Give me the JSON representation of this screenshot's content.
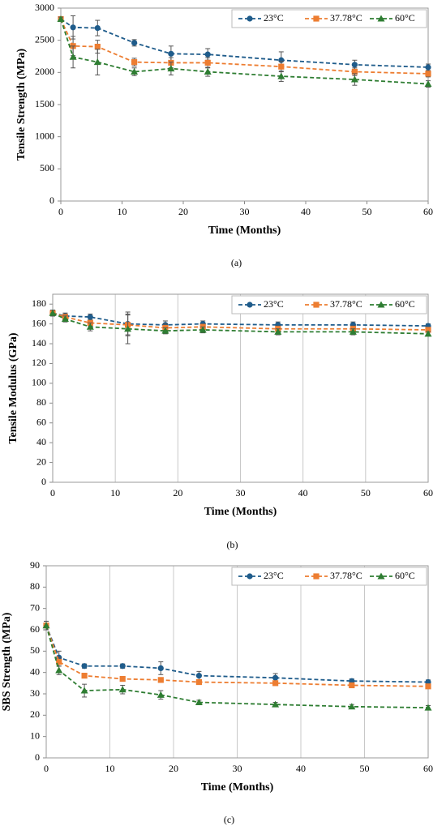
{
  "chart_data": [
    {
      "type": "line",
      "caption": "(a)",
      "y_label": "Tensile Strength (MPa)",
      "x_label": "Time (Months)",
      "x": [
        0,
        2,
        6,
        12,
        18,
        24,
        36,
        48,
        60
      ],
      "xlim": [
        0,
        60
      ],
      "xticks": [
        0,
        10,
        20,
        30,
        40,
        50,
        60
      ],
      "ylim": [
        0,
        3000
      ],
      "yticks": [
        0,
        500,
        1000,
        1500,
        2000,
        2500,
        3000
      ],
      "grid": false,
      "legend": "upper right",
      "series": [
        {
          "name": "23°C",
          "color": "#1f5c8b",
          "marker": "circle",
          "values": [
            2830,
            2700,
            2690,
            2460,
            2290,
            2280,
            2190,
            2120,
            2080
          ],
          "errors": [
            30,
            180,
            120,
            50,
            120,
            90,
            130,
            70,
            50
          ]
        },
        {
          "name": "37.78°C",
          "color": "#ed7d31",
          "marker": "square",
          "values": [
            2830,
            2410,
            2400,
            2160,
            2150,
            2150,
            2090,
            2010,
            1980
          ],
          "errors": [
            30,
            150,
            100,
            60,
            80,
            80,
            80,
            60,
            50
          ]
        },
        {
          "name": "60°C",
          "color": "#2e7d32",
          "marker": "triangle",
          "values": [
            2830,
            2240,
            2160,
            2010,
            2060,
            2010,
            1940,
            1890,
            1820
          ],
          "errors": [
            30,
            170,
            200,
            60,
            100,
            70,
            80,
            90,
            50
          ]
        }
      ]
    },
    {
      "type": "line",
      "caption": "(b)",
      "y_label": "Tensile Modulus (GPa)",
      "x_label": "Time (Months)",
      "x": [
        0,
        2,
        6,
        12,
        18,
        24,
        36,
        48,
        60
      ],
      "xlim": [
        0,
        60
      ],
      "xticks": [
        0,
        10,
        20,
        30,
        40,
        50,
        60
      ],
      "ylim": [
        0,
        190
      ],
      "yticks": [
        0,
        20,
        40,
        60,
        80,
        100,
        120,
        140,
        160,
        180
      ],
      "grid": true,
      "legend": "upper right",
      "series": [
        {
          "name": "23°C",
          "color": "#1f5c8b",
          "marker": "circle",
          "values": [
            171,
            168,
            167,
            160,
            159,
            160,
            159,
            159,
            158
          ],
          "errors": [
            3,
            3,
            3,
            12,
            4,
            3,
            3,
            3,
            2
          ]
        },
        {
          "name": "37.78°C",
          "color": "#ed7d31",
          "marker": "square",
          "values": [
            171,
            167,
            161,
            159,
            156,
            157,
            155,
            155,
            154
          ],
          "errors": [
            3,
            3,
            3,
            10,
            4,
            3,
            3,
            3,
            2
          ]
        },
        {
          "name": "60°C",
          "color": "#2e7d32",
          "marker": "triangle",
          "values": [
            171,
            165,
            157,
            155,
            153,
            154,
            152,
            152,
            150
          ],
          "errors": [
            3,
            3,
            4,
            15,
            3,
            3,
            3,
            3,
            2
          ]
        }
      ]
    },
    {
      "type": "line",
      "caption": "(c)",
      "y_label": "SBS Strength (MPa)",
      "x_label": "Time (Months)",
      "x": [
        0,
        2,
        6,
        12,
        18,
        24,
        36,
        48,
        60
      ],
      "xlim": [
        0,
        60
      ],
      "xticks": [
        0,
        10,
        20,
        30,
        40,
        50,
        60
      ],
      "ylim": [
        0,
        90
      ],
      "yticks": [
        0,
        10,
        20,
        30,
        40,
        50,
        60,
        70,
        80,
        90
      ],
      "grid": true,
      "legend": "upper right",
      "series": [
        {
          "name": "23°C",
          "color": "#1f5c8b",
          "marker": "circle",
          "values": [
            62,
            47,
            43,
            43,
            42,
            38.5,
            37.5,
            36,
            35.5
          ],
          "errors": [
            2,
            3,
            1,
            1,
            3,
            2,
            2,
            1,
            1
          ]
        },
        {
          "name": "37.78°C",
          "color": "#ed7d31",
          "marker": "square",
          "values": [
            62,
            45,
            38.5,
            37,
            36.5,
            35.5,
            35,
            34,
            33.5
          ],
          "errors": [
            2,
            2,
            1,
            1,
            1,
            1,
            1,
            1,
            1
          ]
        },
        {
          "name": "60°C",
          "color": "#2e7d32",
          "marker": "triangle",
          "values": [
            62,
            41,
            31.5,
            32,
            29.5,
            26,
            25,
            24,
            23.5
          ],
          "errors": [
            2,
            2,
            3,
            2,
            2,
            1,
            1,
            1,
            1
          ]
        }
      ]
    }
  ]
}
